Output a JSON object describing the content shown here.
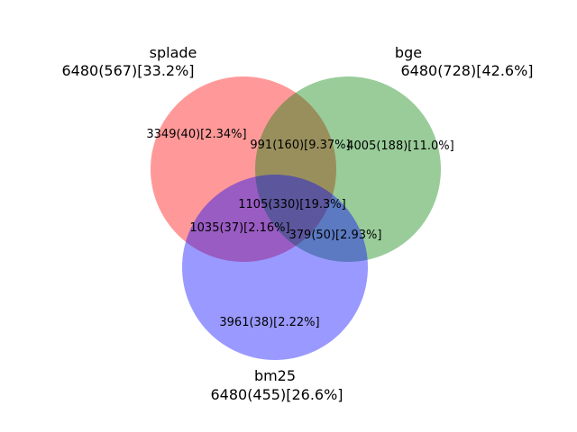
{
  "sets": {
    "splade": {
      "name": "splade",
      "stats": "6480(567)[33.2%]",
      "color": "#ff9999"
    },
    "bge": {
      "name": "bge",
      "stats": "6480(728)[42.6%]",
      "color": "#99cc99"
    },
    "bm25": {
      "name": "bm25",
      "stats": "6480(455)[26.6%]",
      "color": "#9999ff"
    }
  },
  "regions": {
    "splade_only": "3349(40)[2.34%]",
    "splade_bge": "991(160)[9.37%]",
    "bge_only": "4005(188)[11.0%]",
    "all_three": "1105(330)[19.3%]",
    "splade_bm25": "1035(37)[2.16%]",
    "bge_bm25": "379(50)[2.93%]",
    "bm25_only": "3961(38)[2.22%]"
  }
}
